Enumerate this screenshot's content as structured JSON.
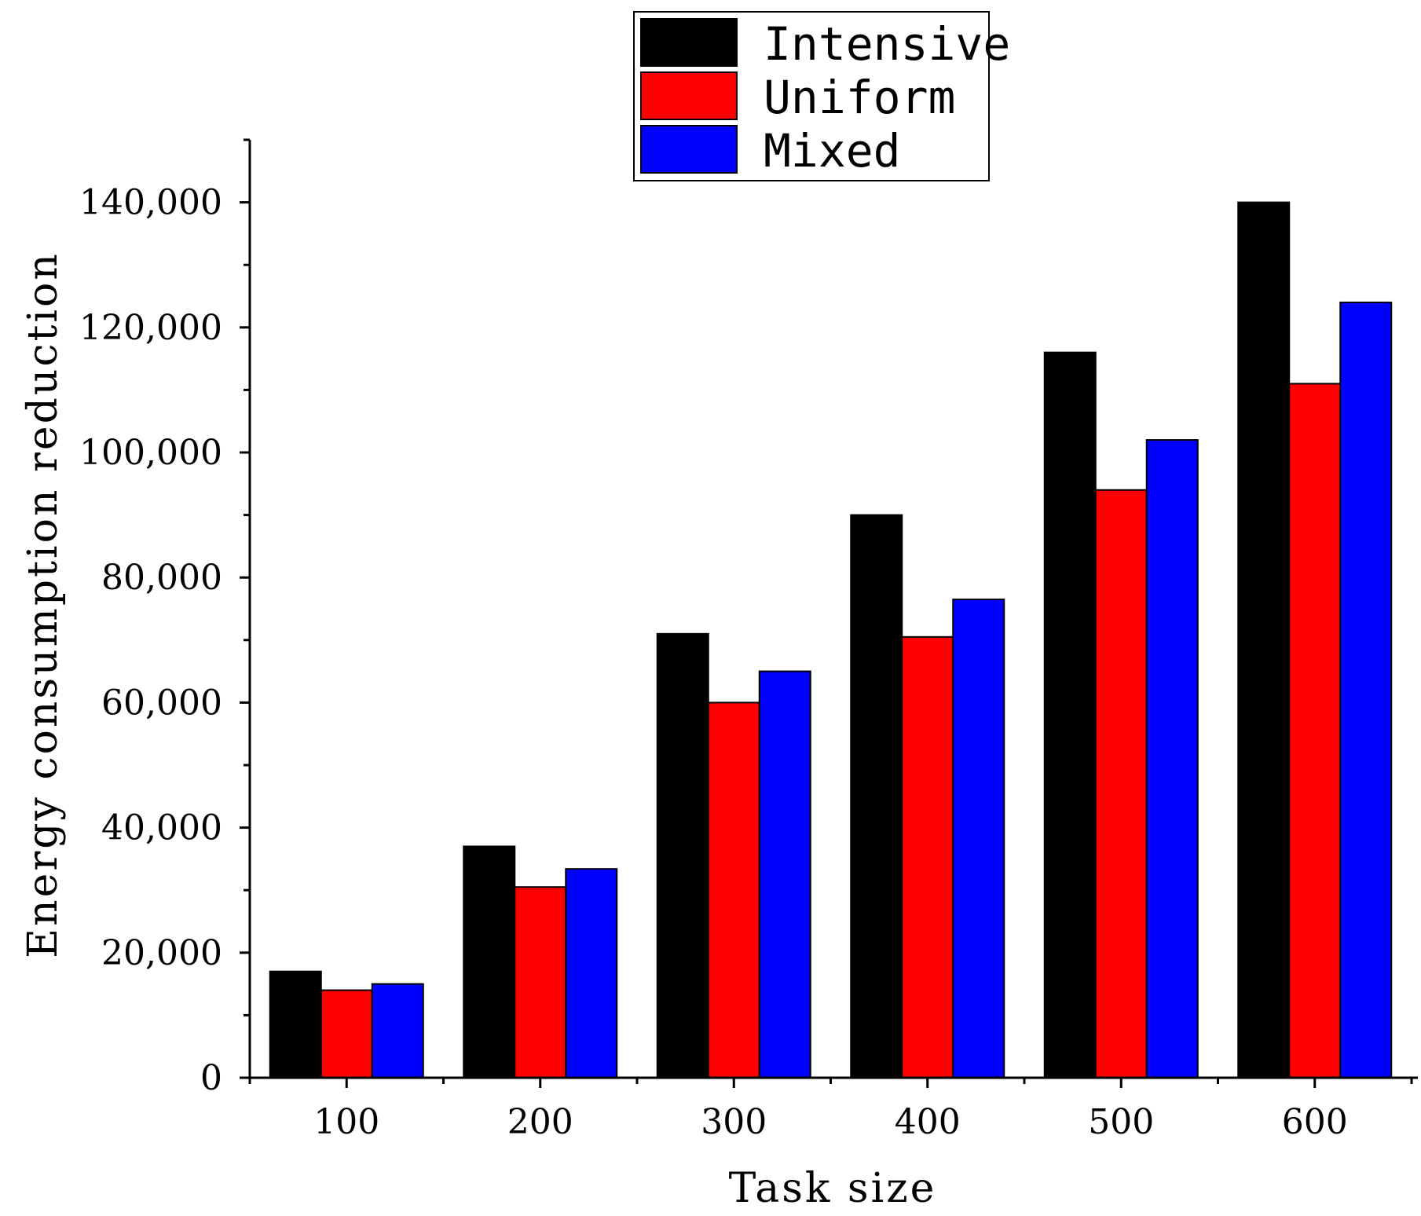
{
  "chart_data": {
    "type": "bar",
    "title": "",
    "xlabel": "Task size",
    "ylabel": "Energy consumption reduction",
    "categories": [
      "100",
      "200",
      "300",
      "400",
      "500",
      "600"
    ],
    "series": [
      {
        "name": "Intensive",
        "color": "#000000",
        "values": [
          17000,
          37000,
          71000,
          90000,
          116000,
          140000
        ]
      },
      {
        "name": "Uniform",
        "color": "#ff0000",
        "values": [
          14000,
          30500,
          60000,
          70500,
          94000,
          111000
        ]
      },
      {
        "name": "Mixed",
        "color": "#0000ff",
        "values": [
          15000,
          33400,
          65000,
          76500,
          102000,
          124000
        ]
      }
    ],
    "ylim": [
      0,
      150000
    ],
    "yticks": [
      0,
      20000,
      40000,
      60000,
      80000,
      100000,
      120000,
      140000
    ],
    "ytick_labels": [
      "0",
      "20,000",
      "40,000",
      "60,000",
      "80,000",
      "100,000",
      "120,000",
      "140,000"
    ],
    "legend_position": "top-center",
    "grid": false
  }
}
